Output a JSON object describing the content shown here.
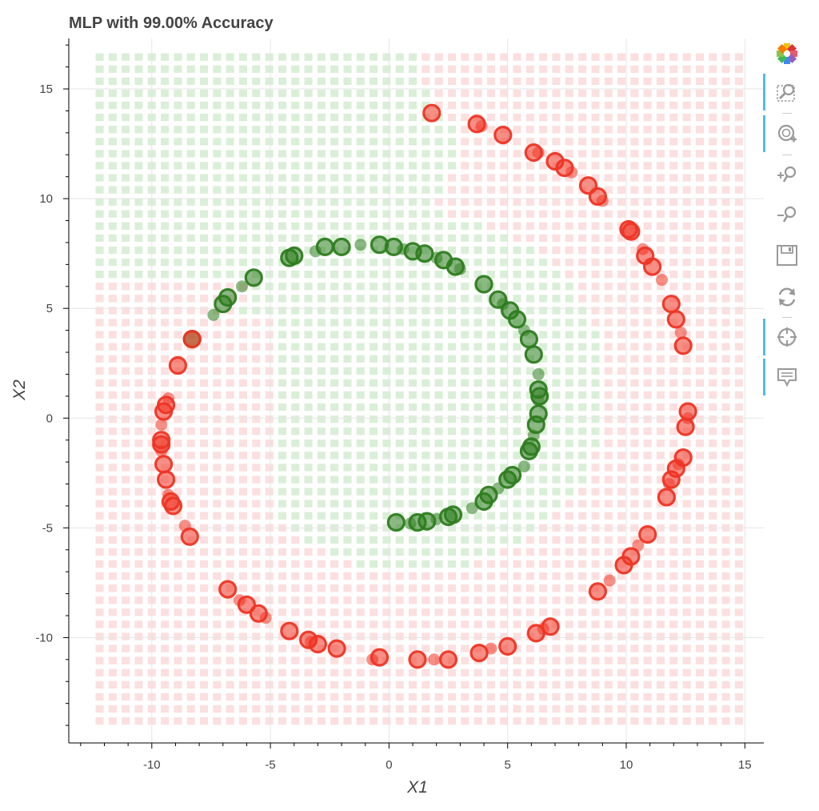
{
  "chart_data": {
    "type": "scatter",
    "title": "MLP with 99.00% Accuracy",
    "xlabel": "X1",
    "ylabel": "X2",
    "xlim": [
      -13.5,
      15.8
    ],
    "ylim": [
      -14.8,
      17.3
    ],
    "x_ticks": [
      -10,
      -5,
      0,
      5,
      10,
      15
    ],
    "y_ticks": [
      -10,
      -5,
      0,
      5,
      10,
      15
    ],
    "x_tick_labels": [
      "-10",
      "-5",
      "0",
      "5",
      "10",
      "15"
    ],
    "y_tick_labels": [
      "-10",
      "-5",
      "0",
      "5",
      "10",
      "15"
    ],
    "grid": true,
    "decision_region": {
      "x_range": [
        -12.2,
        14.8
      ],
      "y_range": [
        -13.8,
        16.6
      ],
      "step": 0.55,
      "class_colors": {
        "green": "#a8d8a0",
        "red": "#f9b3b3"
      }
    },
    "series": [
      {
        "name": "",
        "color": "#2e7d1f",
        "points": [
          [
            -4.2,
            7.3
          ],
          [
            -4.0,
            7.4
          ],
          [
            -3.1,
            7.6
          ],
          [
            -2.7,
            7.8
          ],
          [
            -2.0,
            7.8
          ],
          [
            -1.2,
            7.9
          ],
          [
            -0.4,
            7.9
          ],
          [
            0.2,
            7.8
          ],
          [
            0.6,
            7.7
          ],
          [
            1.0,
            7.6
          ],
          [
            1.5,
            7.5
          ],
          [
            2.0,
            7.3
          ],
          [
            2.3,
            7.2
          ],
          [
            2.8,
            6.9
          ],
          [
            3.0,
            6.8
          ],
          [
            4.0,
            6.1
          ],
          [
            4.6,
            5.4
          ],
          [
            4.8,
            5.2
          ],
          [
            5.1,
            4.9
          ],
          [
            5.4,
            4.5
          ],
          [
            5.7,
            4.0
          ],
          [
            5.9,
            3.6
          ],
          [
            6.1,
            2.9
          ],
          [
            6.3,
            2.0
          ],
          [
            6.3,
            1.3
          ],
          [
            6.35,
            1.0
          ],
          [
            6.3,
            0.8
          ],
          [
            6.3,
            0.2
          ],
          [
            6.2,
            -0.3
          ],
          [
            6.1,
            -0.8
          ],
          [
            6.0,
            -1.3
          ],
          [
            5.9,
            -1.5
          ],
          [
            5.7,
            -2.2
          ],
          [
            5.2,
            -2.6
          ],
          [
            5.0,
            -2.8
          ],
          [
            4.6,
            -3.2
          ],
          [
            4.2,
            -3.5
          ],
          [
            4.0,
            -3.8
          ],
          [
            3.5,
            -4.1
          ],
          [
            2.7,
            -4.4
          ],
          [
            2.5,
            -4.5
          ],
          [
            2.0,
            -4.6
          ],
          [
            1.6,
            -4.7
          ],
          [
            1.2,
            -4.75
          ],
          [
            0.9,
            -4.8
          ],
          [
            0.3,
            -4.75
          ],
          [
            -8.3,
            3.6
          ],
          [
            -7.4,
            4.7
          ],
          [
            -7.0,
            5.2
          ],
          [
            -6.8,
            5.5
          ],
          [
            -6.2,
            6.0
          ],
          [
            -5.7,
            6.4
          ]
        ]
      },
      {
        "name": "",
        "color": "#ee3524",
        "points": [
          [
            1.8,
            13.9
          ],
          [
            3.7,
            13.4
          ],
          [
            3.9,
            13.3
          ],
          [
            4.8,
            12.9
          ],
          [
            6.1,
            12.1
          ],
          [
            6.3,
            12.1
          ],
          [
            7.0,
            11.7
          ],
          [
            7.4,
            11.4
          ],
          [
            7.7,
            11.2
          ],
          [
            8.4,
            10.6
          ],
          [
            8.8,
            10.1
          ],
          [
            9.0,
            9.9
          ],
          [
            10.1,
            8.6
          ],
          [
            10.2,
            8.5
          ],
          [
            10.7,
            7.7
          ],
          [
            10.8,
            7.4
          ],
          [
            11.1,
            6.9
          ],
          [
            11.5,
            6.3
          ],
          [
            11.9,
            5.2
          ],
          [
            12.1,
            4.5
          ],
          [
            12.3,
            3.9
          ],
          [
            12.4,
            3.3
          ],
          [
            12.6,
            0.3
          ],
          [
            12.6,
            0.0
          ],
          [
            12.5,
            -0.4
          ],
          [
            12.4,
            -1.8
          ],
          [
            12.2,
            -2.1
          ],
          [
            12.1,
            -2.3
          ],
          [
            11.9,
            -2.8
          ],
          [
            11.8,
            -3.0
          ],
          [
            11.7,
            -3.6
          ],
          [
            10.9,
            -5.3
          ],
          [
            10.5,
            -5.8
          ],
          [
            10.2,
            -6.3
          ],
          [
            9.9,
            -6.7
          ],
          [
            9.3,
            -7.4
          ],
          [
            8.8,
            -7.9
          ],
          [
            6.8,
            -9.5
          ],
          [
            6.5,
            -9.6
          ],
          [
            6.2,
            -9.8
          ],
          [
            5.0,
            -10.4
          ],
          [
            4.3,
            -10.5
          ],
          [
            3.8,
            -10.7
          ],
          [
            2.5,
            -11.0
          ],
          [
            1.9,
            -11.0
          ],
          [
            1.2,
            -11.0
          ],
          [
            -0.4,
            -10.9
          ],
          [
            -0.7,
            -11.0
          ],
          [
            -2.2,
            -10.5
          ],
          [
            -3.0,
            -10.3
          ],
          [
            -3.3,
            -10.2
          ],
          [
            -3.4,
            -10.1
          ],
          [
            -4.2,
            -9.7
          ],
          [
            -5.2,
            -9.1
          ],
          [
            -5.5,
            -8.9
          ],
          [
            -6.0,
            -8.5
          ],
          [
            -6.3,
            -8.3
          ],
          [
            -6.8,
            -7.8
          ],
          [
            -8.4,
            -5.4
          ],
          [
            -8.6,
            -4.9
          ],
          [
            -9.1,
            -4.0
          ],
          [
            -9.2,
            -3.8
          ],
          [
            -9.3,
            -3.5
          ],
          [
            -9.4,
            -2.8
          ],
          [
            -9.5,
            -2.1
          ],
          [
            -9.6,
            -1.5
          ],
          [
            -9.6,
            -1.2
          ],
          [
            -9.6,
            -1.0
          ],
          [
            -9.6,
            -0.3
          ],
          [
            -9.5,
            0.3
          ],
          [
            -9.4,
            0.6
          ],
          [
            -9.3,
            0.9
          ],
          [
            -8.9,
            2.4
          ],
          [
            -8.3,
            3.6
          ]
        ]
      }
    ]
  },
  "toolbar": {
    "items": [
      {
        "name": "bokeh-logo-icon"
      },
      {
        "name": "box-zoom-icon",
        "active": true
      },
      {
        "name": "wheel-zoom-icon",
        "active": true
      },
      {
        "name": "zoom-in-icon"
      },
      {
        "name": "zoom-out-icon"
      },
      {
        "name": "save-icon"
      },
      {
        "name": "reset-icon"
      },
      {
        "name": "crosshair-icon",
        "active": true
      },
      {
        "name": "hover-icon",
        "active": true
      }
    ]
  }
}
